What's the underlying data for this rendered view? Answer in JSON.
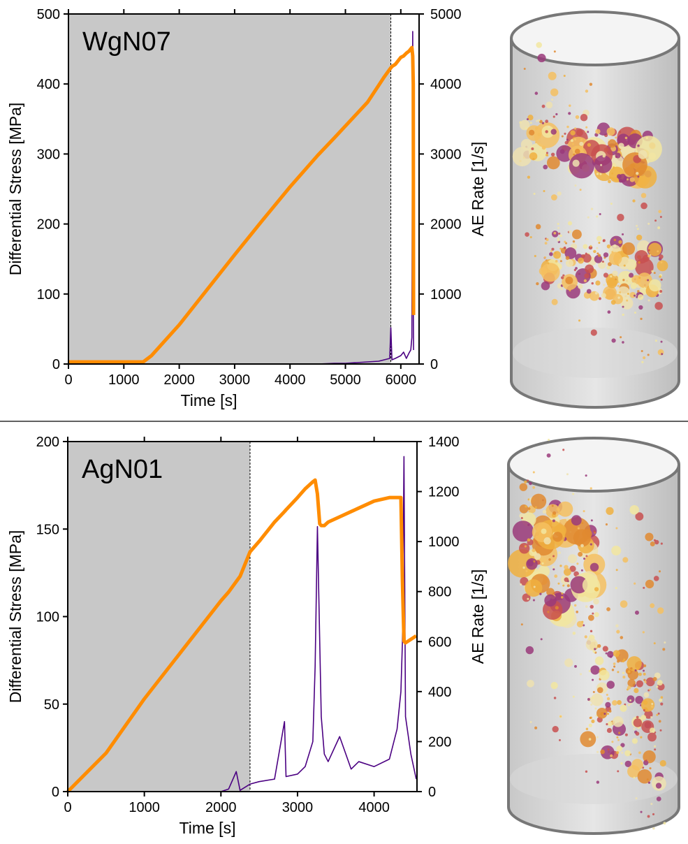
{
  "chart_data": [
    {
      "type": "line",
      "title": "WgN07",
      "xlabel": "Time [s]",
      "ylabel": "Differential Stress [MPa]",
      "y2label": "AE Rate [1/s]",
      "xlim": [
        0,
        6330
      ],
      "xticks": [
        0,
        1000,
        2000,
        3000,
        4000,
        5000,
        6000
      ],
      "ylim": [
        0,
        500
      ],
      "yticks": [
        0,
        100,
        200,
        300,
        400,
        500
      ],
      "y2lim": [
        0,
        5000
      ],
      "y2ticks": [
        0,
        1000,
        2000,
        3000,
        4000,
        5000
      ],
      "shaded_region": [
        0,
        5820
      ],
      "x": [
        0,
        1000,
        1350,
        1500,
        2000,
        2500,
        3000,
        3500,
        4000,
        4500,
        4800,
        5000,
        5200,
        5400,
        5600,
        5700,
        5800,
        5820,
        5840,
        5900,
        6000,
        6050,
        6100,
        6150,
        6180,
        6200,
        6215,
        6225,
        6230
      ],
      "series": [
        {
          "color": "#4b0082",
          "axis": "y2",
          "values": [
            0,
            0,
            0,
            0,
            0,
            0,
            0,
            0,
            0,
            0,
            10,
            10,
            20,
            30,
            40,
            60,
            80,
            520,
            60,
            80,
            120,
            170,
            80,
            160,
            200,
            380,
            4750,
            900,
            200
          ]
        },
        {
          "color": "#ff8c00",
          "values": [
            3,
            3,
            3,
            12,
            56,
            106,
            156,
            205,
            253,
            298,
            323,
            340,
            357,
            374,
            398,
            410,
            421,
            423,
            425,
            428,
            438,
            440,
            444,
            447,
            450,
            452,
            440,
            400,
            70
          ]
        }
      ]
    },
    {
      "type": "line",
      "title": "AgN01",
      "xlabel": "Time [s]",
      "ylabel": "Differential Stress [MPa]",
      "y2label": "AE Rate [1/s]",
      "xlim": [
        0,
        4560
      ],
      "xticks": [
        0,
        1000,
        2000,
        3000,
        4000
      ],
      "ylim": [
        0,
        200
      ],
      "yticks": [
        0,
        50,
        100,
        150,
        200
      ],
      "y2lim": [
        0,
        1400
      ],
      "y2ticks": [
        0,
        200,
        400,
        600,
        800,
        1000,
        1200,
        1400
      ],
      "shaded_region": [
        0,
        2380
      ],
      "x": [
        0,
        500,
        1000,
        1500,
        2000,
        2100,
        2200,
        2250,
        2380,
        2500,
        2700,
        2830,
        2850,
        3000,
        3100,
        3200,
        3230,
        3260,
        3290,
        3310,
        3350,
        3400,
        3550,
        3700,
        3800,
        4000,
        4200,
        4300,
        4350,
        4370,
        4390,
        4410,
        4480,
        4550
      ],
      "series": [
        {
          "color": "#4b0082",
          "axis": "y2",
          "values": [
            0,
            0,
            0,
            0,
            0,
            10,
            80,
            5,
            30,
            40,
            50,
            280,
            60,
            70,
            100,
            200,
            500,
            1060,
            600,
            300,
            150,
            120,
            220,
            90,
            120,
            100,
            130,
            250,
            400,
            600,
            1340,
            300,
            150,
            50
          ]
        },
        {
          "color": "#ff8c00",
          "values": [
            0,
            22,
            53,
            81,
            109,
            114,
            120,
            123,
            137,
            143,
            154,
            160,
            161,
            168,
            173,
            177,
            178,
            170,
            153,
            152,
            152,
            154,
            157,
            160,
            162,
            166,
            168,
            168,
            168,
            120,
            86,
            85,
            87,
            89
          ]
        }
      ]
    }
  ]
}
